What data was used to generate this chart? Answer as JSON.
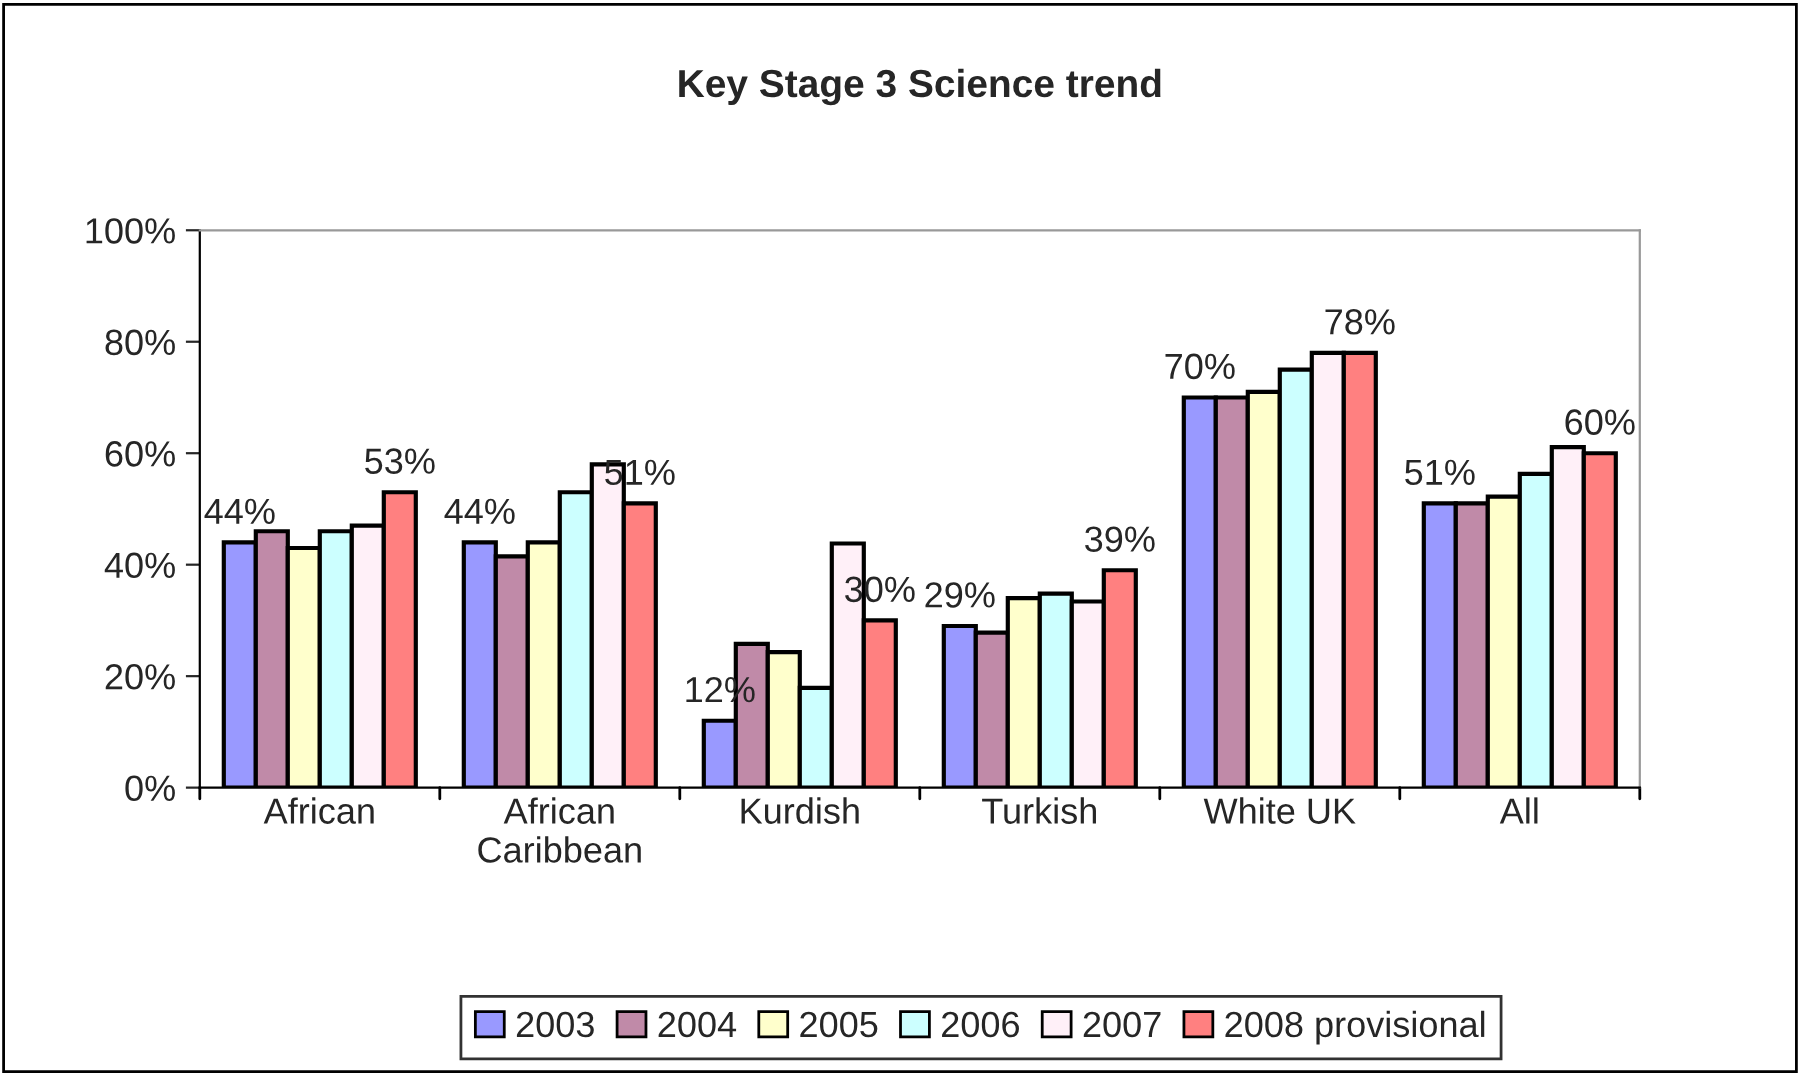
{
  "chart_data": {
    "type": "bar",
    "title": "Key Stage 3 Science trend",
    "categories": [
      "African",
      "African\nCaribbean",
      "Kurdish",
      "Turkish",
      "White UK",
      "All"
    ],
    "series": [
      {
        "name": "2003",
        "color": "#9999ff",
        "values": [
          44,
          44,
          12,
          29,
          70,
          51
        ],
        "value_labels": [
          "44%",
          "44%",
          "12%",
          "29%",
          "70%",
          "51%"
        ]
      },
      {
        "name": "2004",
        "color": "#c08aa8",
        "values": [
          46,
          41.5,
          25.8,
          27.8,
          70,
          51
        ]
      },
      {
        "name": "2005",
        "color": "#ffffcc",
        "values": [
          43,
          44,
          24.3,
          34,
          71,
          52.2
        ]
      },
      {
        "name": "2006",
        "color": "#ccffff",
        "values": [
          46,
          53,
          17.9,
          34.8,
          75,
          56.3
        ]
      },
      {
        "name": "2007",
        "color": "#fff0f8",
        "values": [
          47,
          58,
          43.8,
          33.4,
          78,
          61.1
        ]
      },
      {
        "name": "2008 provisional",
        "color": "#ff8080",
        "values": [
          53,
          51,
          30,
          39,
          78,
          60
        ],
        "value_labels": [
          "53%",
          "51%",
          "30%",
          "39%",
          "78%",
          "60%"
        ]
      }
    ],
    "ylim": [
      0,
      100
    ],
    "yticks": [
      {
        "value": 0,
        "label": "0%"
      },
      {
        "value": 20,
        "label": "20%"
      },
      {
        "value": 40,
        "label": "40%"
      },
      {
        "value": 60,
        "label": "60%"
      },
      {
        "value": 80,
        "label": "80%"
      },
      {
        "value": 100,
        "label": "100%"
      }
    ],
    "grid": false,
    "legend": "bottom"
  }
}
